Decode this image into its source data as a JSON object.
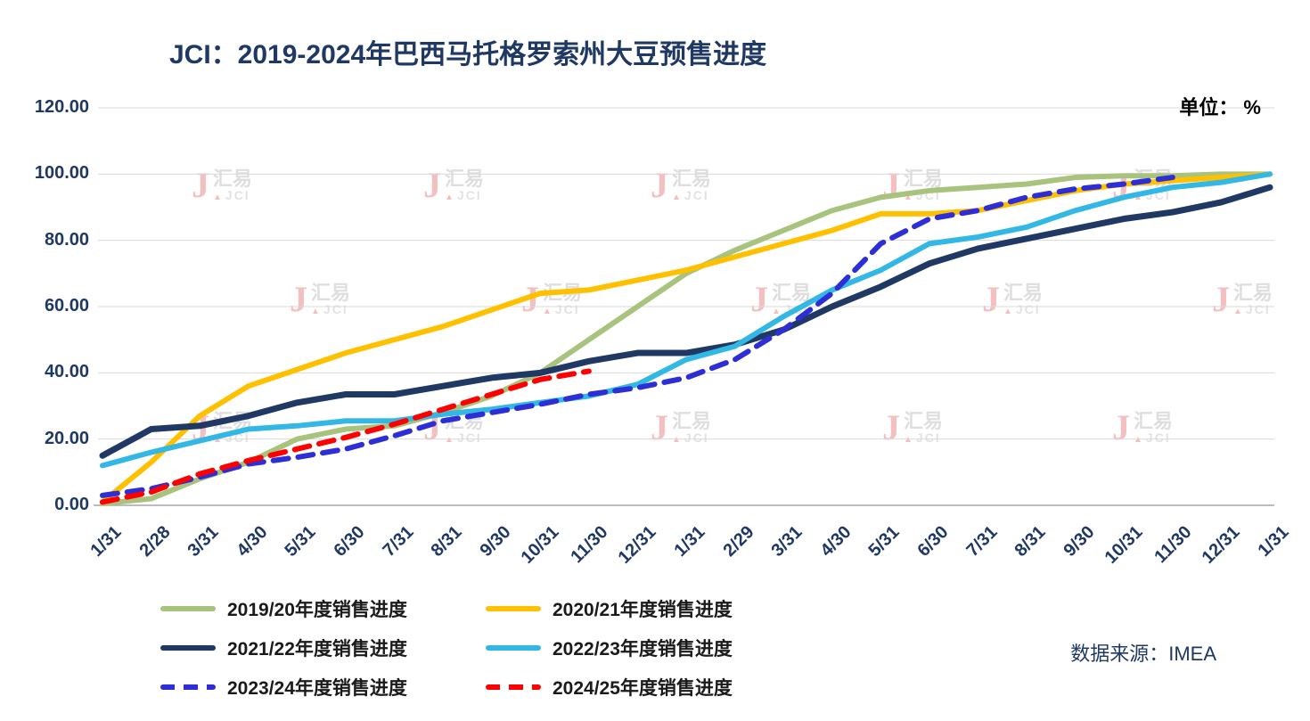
{
  "title": "JCI：2019-2024年巴西马托格罗索州大豆预售进度",
  "unit_label": "单位： %",
  "source_label": "数据来源：IMEA",
  "watermark": {
    "j": "J",
    "cn": "汇易",
    "en": "JCI",
    "triangle": "▲"
  },
  "chart_data": {
    "type": "line",
    "x": [
      "1/31",
      "2/28",
      "3/31",
      "4/30",
      "5/31",
      "6/30",
      "7/31",
      "8/31",
      "9/30",
      "10/31",
      "11/30",
      "12/31",
      "1/31",
      "2/29",
      "3/31",
      "4/30",
      "5/31",
      "6/30",
      "7/31",
      "8/31",
      "9/30",
      "10/31",
      "11/30",
      "12/31",
      "1/31"
    ],
    "ylim": [
      0,
      120
    ],
    "ytick_step": 20,
    "yticks": [
      "0.00",
      "20.00",
      "40.00",
      "60.00",
      "80.00",
      "100.00",
      "120.00"
    ],
    "grid": true,
    "legend_position": "bottom",
    "axis_color": "#A6A6A6",
    "grid_color": "#D9D9D9",
    "series": [
      {
        "name": "2019/20年度销售进度",
        "color": "#A8C37E",
        "dash": false,
        "values": [
          0.5,
          2,
          8,
          13,
          20,
          23,
          24,
          28,
          33,
          40,
          50,
          60,
          70,
          77,
          83,
          89,
          93,
          95,
          96,
          97,
          99,
          99.5,
          99.5,
          100,
          100
        ]
      },
      {
        "name": "2020/21年度销售进度",
        "color": "#FFC000",
        "dash": false,
        "values": [
          1,
          13,
          27,
          36,
          41,
          46,
          50,
          54,
          59,
          64,
          65,
          68,
          71,
          75,
          79,
          83,
          88,
          88,
          89,
          92,
          95,
          97,
          98,
          99,
          100
        ]
      },
      {
        "name": "2021/22年度销售进度",
        "color": "#1F3864",
        "dash": false,
        "values": [
          15,
          23,
          24,
          27,
          31,
          33.5,
          33.5,
          36,
          38.5,
          40,
          43.5,
          46,
          46,
          48.5,
          53,
          60,
          66,
          73,
          77.5,
          80.5,
          83.5,
          86.5,
          88.5,
          91.5,
          96
        ]
      },
      {
        "name": "2022/23年度销售进度",
        "color": "#33B8E5",
        "dash": false,
        "values": [
          12,
          16,
          19.5,
          23,
          24,
          25.5,
          25.5,
          27.5,
          29,
          31,
          33,
          36.5,
          44,
          48,
          57,
          65,
          71,
          79,
          81,
          84,
          89,
          93,
          96,
          97.5,
          100
        ]
      },
      {
        "name": "2023/24年度销售进度",
        "color": "#2E2ED6",
        "dash": true,
        "values": [
          3,
          5,
          8.5,
          12.5,
          14.5,
          17,
          21,
          25.5,
          28,
          30.5,
          33.5,
          35.5,
          38.5,
          44,
          53,
          64,
          79,
          86.5,
          89,
          93,
          95.5,
          97,
          99,
          null,
          null
        ]
      },
      {
        "name": "2024/25年度销售进度",
        "color": "#FF0000",
        "dash": true,
        "values": [
          1,
          4,
          9.5,
          13.5,
          17,
          20.5,
          24.5,
          29,
          33.5,
          38,
          40.5,
          null,
          null,
          null,
          null,
          null,
          null,
          null,
          null,
          null,
          null,
          null,
          null,
          null,
          null
        ]
      }
    ]
  }
}
